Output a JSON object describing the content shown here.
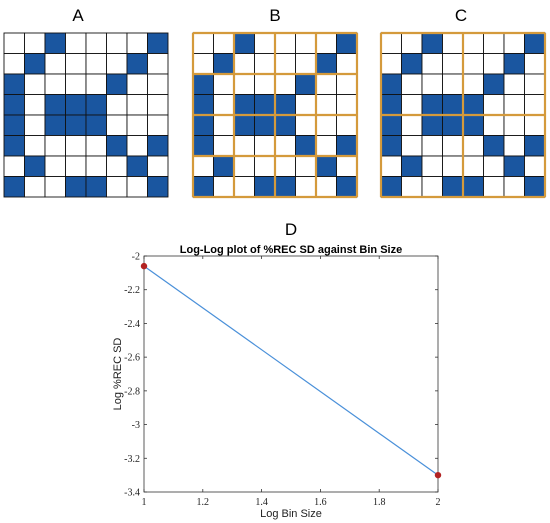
{
  "panels": {
    "a": {
      "label": "A"
    },
    "b": {
      "label": "B"
    },
    "c": {
      "label": "C"
    },
    "d": {
      "label": "D"
    }
  },
  "grid": {
    "size": 8,
    "cells": [
      "00100001",
      "01000010",
      "10000100",
      "10111000",
      "10111000",
      "10000101",
      "01000010",
      "10011001"
    ],
    "fill_color": "#1a56a0",
    "line_color": "#111111",
    "bin_color": "#d49a3c",
    "bin_size_b": 2,
    "bin_size_c": 4
  },
  "chart_data": {
    "type": "line",
    "title": "Log-Log plot of %REC SD against Bin Size",
    "xlabel": "Log Bin Size",
    "ylabel": "Log %REC SD",
    "xlim": [
      1,
      2
    ],
    "ylim": [
      -3.4,
      -2
    ],
    "xticks": [
      "1",
      "1.2",
      "1.4",
      "1.6",
      "1.8",
      "2"
    ],
    "yticks": [
      "-2",
      "-2.2",
      "-2.4",
      "-2.6",
      "-2.8",
      "-3",
      "-3.2",
      "-3.4"
    ],
    "x": [
      1,
      2
    ],
    "y": [
      -2.06,
      -3.3
    ],
    "line_color": "#4a90d9",
    "marker_color": "#b22222",
    "grid": false
  }
}
